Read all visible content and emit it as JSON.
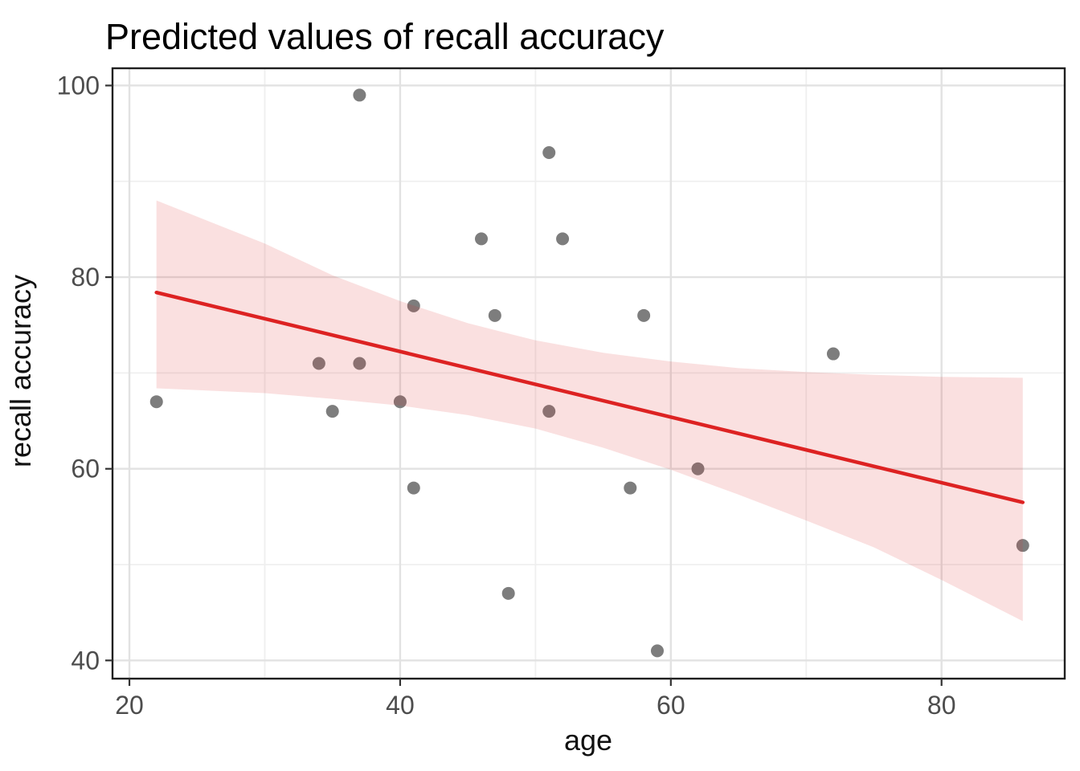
{
  "title": "Predicted values of recall accuracy",
  "chart_data": {
    "type": "scatter",
    "title": "Predicted values of recall accuracy",
    "xlabel": "age",
    "ylabel": "recall accuracy",
    "xlim": [
      18.75,
      89.1
    ],
    "ylim": [
      38.1,
      101.8
    ],
    "x_major_ticks": [
      20,
      40,
      60,
      80
    ],
    "x_minor_ticks": [
      30,
      50,
      70
    ],
    "y_major_ticks": [
      40,
      60,
      80,
      100
    ],
    "y_minor_ticks": [
      50,
      70,
      90
    ],
    "grid": "on",
    "legend": "none",
    "points": [
      [
        22,
        67
      ],
      [
        34,
        71
      ],
      [
        35,
        66
      ],
      [
        37,
        71
      ],
      [
        37,
        99
      ],
      [
        40,
        67
      ],
      [
        41,
        58
      ],
      [
        41,
        77
      ],
      [
        46,
        84
      ],
      [
        47,
        76
      ],
      [
        48,
        47
      ],
      [
        51,
        66
      ],
      [
        51,
        93
      ],
      [
        52,
        84
      ],
      [
        57,
        58
      ],
      [
        58,
        76
      ],
      [
        59,
        41
      ],
      [
        62,
        60
      ],
      [
        72,
        72
      ],
      [
        86,
        52
      ]
    ],
    "regression_line": {
      "x": [
        22,
        86
      ],
      "y": [
        78.4,
        56.5
      ]
    },
    "confidence_band": {
      "x": [
        22,
        30,
        35,
        40,
        45,
        50,
        55,
        60,
        65,
        70,
        75,
        80,
        86
      ],
      "upper": [
        88.0,
        83.5,
        80.2,
        77.5,
        75.2,
        73.4,
        72.1,
        71.2,
        70.5,
        70.1,
        69.8,
        69.6,
        69.5
      ],
      "lower": [
        68.4,
        67.9,
        67.3,
        66.6,
        65.6,
        64.2,
        62.2,
        59.9,
        57.3,
        54.6,
        51.8,
        48.4,
        44.1
      ]
    },
    "colors": {
      "point": "#7d7d7d",
      "regression_line": "#dd2222",
      "band": "#dd2e2e",
      "band_opacity": 0.15,
      "major_grid": "#e2e2e2",
      "minor_grid": "#efefef",
      "panel_border": "#1f1f1f",
      "tick_mark": "#333333",
      "tick_label": "#4d4d4d"
    }
  }
}
